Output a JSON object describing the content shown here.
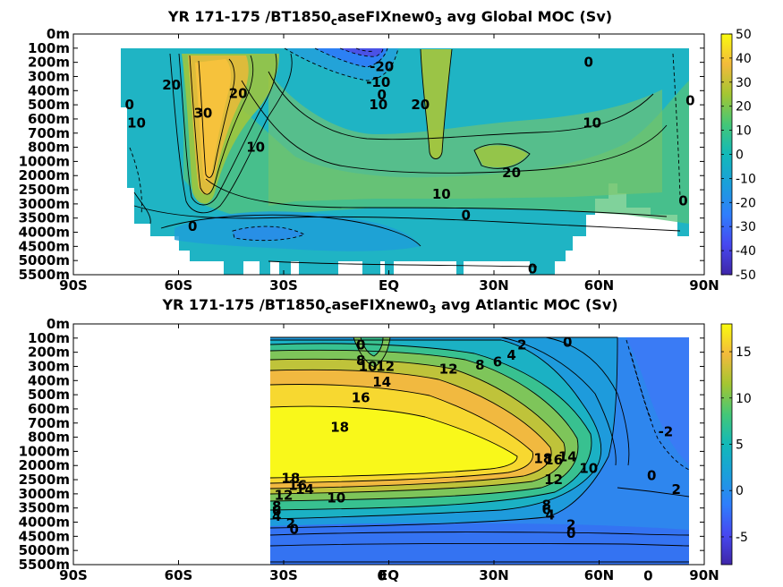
{
  "chart_data": [
    {
      "type": "contour",
      "title_prefix": "YR 171-175 /BT1850",
      "title_sub1": "c",
      "title_mid": "aseFIXnew0",
      "title_sub2": "3",
      "title_suffix": " avg  Global MOC (Sv)",
      "x_ticks": [
        "90S",
        "60S",
        "30S",
        "EQ",
        "30N",
        "60N",
        "90N"
      ],
      "x_values": [
        -90,
        -60,
        -30,
        0,
        30,
        60,
        90
      ],
      "y_ticks": [
        "0m",
        "100m",
        "200m",
        "300m",
        "400m",
        "500m",
        "600m",
        "700m",
        "800m",
        "1000m",
        "2000m",
        "2500m",
        "3000m",
        "3500m",
        "4000m",
        "4500m",
        "5000m",
        "5500m"
      ],
      "colorbar": {
        "min": -50,
        "max": 50,
        "ticks": [
          "50",
          "40",
          "30",
          "20",
          "10",
          "0",
          "-10",
          "-20",
          "-30",
          "-40",
          "-50"
        ],
        "colormap": "parula"
      },
      "contour_labels": [
        {
          "text": "-20",
          "lat": -2,
          "depth_idx": 2.3
        },
        {
          "text": "-10",
          "lat": -3,
          "depth_idx": 3.4
        },
        {
          "text": "0",
          "lat": -2,
          "depth_idx": 4.3
        },
        {
          "text": "20",
          "lat": -62,
          "depth_idx": 3.6
        },
        {
          "text": "30",
          "lat": -53,
          "depth_idx": 5.6
        },
        {
          "text": "20",
          "lat": -43,
          "depth_idx": 4.2
        },
        {
          "text": "0",
          "lat": -74,
          "depth_idx": 5.0
        },
        {
          "text": "10",
          "lat": -72,
          "depth_idx": 6.3
        },
        {
          "text": "10",
          "lat": -38,
          "depth_idx": 8.0
        },
        {
          "text": "10",
          "lat": -3,
          "depth_idx": 5.0
        },
        {
          "text": "20",
          "lat": 9,
          "depth_idx": 5.0
        },
        {
          "text": "0",
          "lat": 57,
          "depth_idx": 2.0
        },
        {
          "text": "10",
          "lat": 58,
          "depth_idx": 6.3
        },
        {
          "text": "0",
          "lat": 86,
          "depth_idx": 4.7
        },
        {
          "text": "20",
          "lat": 35,
          "depth_idx": 9.8
        },
        {
          "text": "10",
          "lat": 15,
          "depth_idx": 11.3
        },
        {
          "text": "0",
          "lat": 84,
          "depth_idx": 11.8
        },
        {
          "text": "0",
          "lat": 22,
          "depth_idx": 12.8
        },
        {
          "text": "0",
          "lat": -56,
          "depth_idx": 13.6
        },
        {
          "text": "0",
          "lat": 41,
          "depth_idx": 16.6
        }
      ]
    },
    {
      "type": "contour",
      "title_prefix": "YR 171-175 /BT1850",
      "title_sub1": "c",
      "title_mid": "aseFIXnew0",
      "title_sub2": "3",
      "title_suffix": " avg  Atlantic MOC (Sv)",
      "x_ticks": [
        "90S",
        "60S",
        "30S",
        "EQ",
        "30N",
        "60N",
        "90N"
      ],
      "x_values": [
        -90,
        -60,
        -30,
        0,
        30,
        60,
        90
      ],
      "y_ticks": [
        "0m",
        "100m",
        "200m",
        "300m",
        "400m",
        "500m",
        "600m",
        "700m",
        "800m",
        "1000m",
        "2000m",
        "2500m",
        "3000m",
        "3500m",
        "4000m",
        "4500m",
        "5000m",
        "5500m"
      ],
      "colorbar": {
        "min": -8,
        "max": 18,
        "ticks": [
          "15",
          "10",
          "5",
          "0",
          "-5"
        ],
        "tick_values": [
          15,
          10,
          5,
          0,
          -5
        ],
        "colormap": "parula"
      },
      "contour_labels": [
        {
          "text": "0",
          "lat": -8,
          "depth_idx": 1.5
        },
        {
          "text": "8",
          "lat": -8,
          "depth_idx": 2.6
        },
        {
          "text": "10",
          "lat": -6,
          "depth_idx": 3.0
        },
        {
          "text": "12",
          "lat": -1,
          "depth_idx": 3.0
        },
        {
          "text": "14",
          "lat": -2,
          "depth_idx": 4.1
        },
        {
          "text": "16",
          "lat": -8,
          "depth_idx": 5.2
        },
        {
          "text": "18",
          "lat": -14,
          "depth_idx": 7.3
        },
        {
          "text": "12",
          "lat": 17,
          "depth_idx": 3.2
        },
        {
          "text": "8",
          "lat": 26,
          "depth_idx": 2.9
        },
        {
          "text": "6",
          "lat": 31,
          "depth_idx": 2.7
        },
        {
          "text": "4",
          "lat": 35,
          "depth_idx": 2.2
        },
        {
          "text": "2",
          "lat": 38,
          "depth_idx": 1.5
        },
        {
          "text": "0",
          "lat": 51,
          "depth_idx": 1.3
        },
        {
          "text": "-2",
          "lat": 79,
          "depth_idx": 7.6
        },
        {
          "text": "18",
          "lat": 44,
          "depth_idx": 9.5
        },
        {
          "text": "16",
          "lat": 47,
          "depth_idx": 9.6
        },
        {
          "text": "14",
          "lat": 51,
          "depth_idx": 9.4
        },
        {
          "text": "12",
          "lat": 47,
          "depth_idx": 11.0
        },
        {
          "text": "10",
          "lat": 57,
          "depth_idx": 10.2
        },
        {
          "text": "0",
          "lat": 75,
          "depth_idx": 10.7
        },
        {
          "text": "2",
          "lat": 82,
          "depth_idx": 11.7
        },
        {
          "text": "18",
          "lat": -28,
          "depth_idx": 10.9
        },
        {
          "text": "16",
          "lat": -26,
          "depth_idx": 11.4
        },
        {
          "text": "14",
          "lat": -24,
          "depth_idx": 11.7
        },
        {
          "text": "12",
          "lat": -30,
          "depth_idx": 12.1
        },
        {
          "text": "10",
          "lat": -15,
          "depth_idx": 12.3
        },
        {
          "text": "8",
          "lat": -32,
          "depth_idx": 12.9
        },
        {
          "text": "6",
          "lat": -32,
          "depth_idx": 13.2
        },
        {
          "text": "4",
          "lat": -32,
          "depth_idx": 13.6
        },
        {
          "text": "2",
          "lat": -28,
          "depth_idx": 14.1
        },
        {
          "text": "0",
          "lat": -27,
          "depth_idx": 14.5
        },
        {
          "text": "8",
          "lat": 45,
          "depth_idx": 12.8
        },
        {
          "text": "6",
          "lat": 45,
          "depth_idx": 13.1
        },
        {
          "text": "4",
          "lat": 46,
          "depth_idx": 13.5
        },
        {
          "text": "2",
          "lat": 52,
          "depth_idx": 14.2
        },
        {
          "text": "0",
          "lat": 52,
          "depth_idx": 14.8
        },
        {
          "text": "0",
          "lat": -2,
          "depth_idx": 17.8
        },
        {
          "text": "0",
          "lat": 74,
          "depth_idx": 17.8
        }
      ]
    }
  ]
}
